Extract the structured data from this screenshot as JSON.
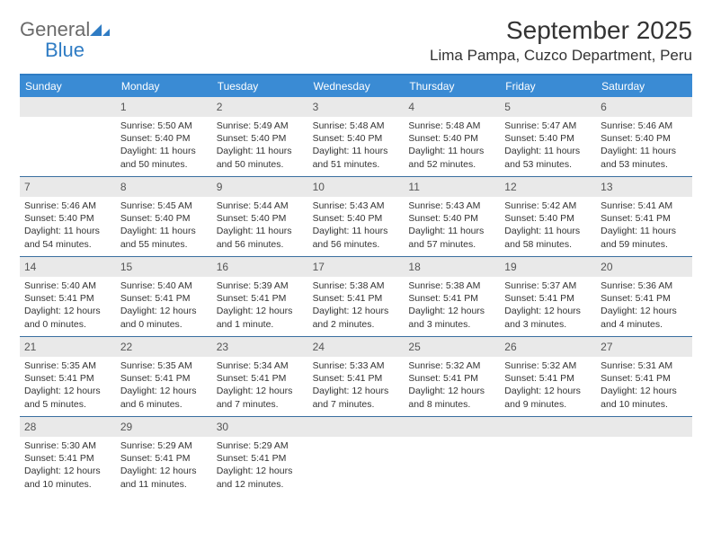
{
  "logo": {
    "word1": "General",
    "word2": "Blue"
  },
  "title": "September 2025",
  "location": "Lima Pampa, Cuzco Department, Peru",
  "colors": {
    "header_bg": "#3a8bd4",
    "header_border_top": "#2f7cc4",
    "week_divider": "#3a6fa0",
    "daynum_bg": "#e9e9e9",
    "text": "#333333",
    "logo_gray": "#6b6b6b",
    "logo_blue": "#2f7cc4"
  },
  "days_of_week": [
    "Sunday",
    "Monday",
    "Tuesday",
    "Wednesday",
    "Thursday",
    "Friday",
    "Saturday"
  ],
  "weeks": [
    [
      null,
      {
        "n": "1",
        "sunrise": "Sunrise: 5:50 AM",
        "sunset": "Sunset: 5:40 PM",
        "d1": "Daylight: 11 hours",
        "d2": "and 50 minutes."
      },
      {
        "n": "2",
        "sunrise": "Sunrise: 5:49 AM",
        "sunset": "Sunset: 5:40 PM",
        "d1": "Daylight: 11 hours",
        "d2": "and 50 minutes."
      },
      {
        "n": "3",
        "sunrise": "Sunrise: 5:48 AM",
        "sunset": "Sunset: 5:40 PM",
        "d1": "Daylight: 11 hours",
        "d2": "and 51 minutes."
      },
      {
        "n": "4",
        "sunrise": "Sunrise: 5:48 AM",
        "sunset": "Sunset: 5:40 PM",
        "d1": "Daylight: 11 hours",
        "d2": "and 52 minutes."
      },
      {
        "n": "5",
        "sunrise": "Sunrise: 5:47 AM",
        "sunset": "Sunset: 5:40 PM",
        "d1": "Daylight: 11 hours",
        "d2": "and 53 minutes."
      },
      {
        "n": "6",
        "sunrise": "Sunrise: 5:46 AM",
        "sunset": "Sunset: 5:40 PM",
        "d1": "Daylight: 11 hours",
        "d2": "and 53 minutes."
      }
    ],
    [
      {
        "n": "7",
        "sunrise": "Sunrise: 5:46 AM",
        "sunset": "Sunset: 5:40 PM",
        "d1": "Daylight: 11 hours",
        "d2": "and 54 minutes."
      },
      {
        "n": "8",
        "sunrise": "Sunrise: 5:45 AM",
        "sunset": "Sunset: 5:40 PM",
        "d1": "Daylight: 11 hours",
        "d2": "and 55 minutes."
      },
      {
        "n": "9",
        "sunrise": "Sunrise: 5:44 AM",
        "sunset": "Sunset: 5:40 PM",
        "d1": "Daylight: 11 hours",
        "d2": "and 56 minutes."
      },
      {
        "n": "10",
        "sunrise": "Sunrise: 5:43 AM",
        "sunset": "Sunset: 5:40 PM",
        "d1": "Daylight: 11 hours",
        "d2": "and 56 minutes."
      },
      {
        "n": "11",
        "sunrise": "Sunrise: 5:43 AM",
        "sunset": "Sunset: 5:40 PM",
        "d1": "Daylight: 11 hours",
        "d2": "and 57 minutes."
      },
      {
        "n": "12",
        "sunrise": "Sunrise: 5:42 AM",
        "sunset": "Sunset: 5:40 PM",
        "d1": "Daylight: 11 hours",
        "d2": "and 58 minutes."
      },
      {
        "n": "13",
        "sunrise": "Sunrise: 5:41 AM",
        "sunset": "Sunset: 5:41 PM",
        "d1": "Daylight: 11 hours",
        "d2": "and 59 minutes."
      }
    ],
    [
      {
        "n": "14",
        "sunrise": "Sunrise: 5:40 AM",
        "sunset": "Sunset: 5:41 PM",
        "d1": "Daylight: 12 hours",
        "d2": "and 0 minutes."
      },
      {
        "n": "15",
        "sunrise": "Sunrise: 5:40 AM",
        "sunset": "Sunset: 5:41 PM",
        "d1": "Daylight: 12 hours",
        "d2": "and 0 minutes."
      },
      {
        "n": "16",
        "sunrise": "Sunrise: 5:39 AM",
        "sunset": "Sunset: 5:41 PM",
        "d1": "Daylight: 12 hours",
        "d2": "and 1 minute."
      },
      {
        "n": "17",
        "sunrise": "Sunrise: 5:38 AM",
        "sunset": "Sunset: 5:41 PM",
        "d1": "Daylight: 12 hours",
        "d2": "and 2 minutes."
      },
      {
        "n": "18",
        "sunrise": "Sunrise: 5:38 AM",
        "sunset": "Sunset: 5:41 PM",
        "d1": "Daylight: 12 hours",
        "d2": "and 3 minutes."
      },
      {
        "n": "19",
        "sunrise": "Sunrise: 5:37 AM",
        "sunset": "Sunset: 5:41 PM",
        "d1": "Daylight: 12 hours",
        "d2": "and 3 minutes."
      },
      {
        "n": "20",
        "sunrise": "Sunrise: 5:36 AM",
        "sunset": "Sunset: 5:41 PM",
        "d1": "Daylight: 12 hours",
        "d2": "and 4 minutes."
      }
    ],
    [
      {
        "n": "21",
        "sunrise": "Sunrise: 5:35 AM",
        "sunset": "Sunset: 5:41 PM",
        "d1": "Daylight: 12 hours",
        "d2": "and 5 minutes."
      },
      {
        "n": "22",
        "sunrise": "Sunrise: 5:35 AM",
        "sunset": "Sunset: 5:41 PM",
        "d1": "Daylight: 12 hours",
        "d2": "and 6 minutes."
      },
      {
        "n": "23",
        "sunrise": "Sunrise: 5:34 AM",
        "sunset": "Sunset: 5:41 PM",
        "d1": "Daylight: 12 hours",
        "d2": "and 7 minutes."
      },
      {
        "n": "24",
        "sunrise": "Sunrise: 5:33 AM",
        "sunset": "Sunset: 5:41 PM",
        "d1": "Daylight: 12 hours",
        "d2": "and 7 minutes."
      },
      {
        "n": "25",
        "sunrise": "Sunrise: 5:32 AM",
        "sunset": "Sunset: 5:41 PM",
        "d1": "Daylight: 12 hours",
        "d2": "and 8 minutes."
      },
      {
        "n": "26",
        "sunrise": "Sunrise: 5:32 AM",
        "sunset": "Sunset: 5:41 PM",
        "d1": "Daylight: 12 hours",
        "d2": "and 9 minutes."
      },
      {
        "n": "27",
        "sunrise": "Sunrise: 5:31 AM",
        "sunset": "Sunset: 5:41 PM",
        "d1": "Daylight: 12 hours",
        "d2": "and 10 minutes."
      }
    ],
    [
      {
        "n": "28",
        "sunrise": "Sunrise: 5:30 AM",
        "sunset": "Sunset: 5:41 PM",
        "d1": "Daylight: 12 hours",
        "d2": "and 10 minutes."
      },
      {
        "n": "29",
        "sunrise": "Sunrise: 5:29 AM",
        "sunset": "Sunset: 5:41 PM",
        "d1": "Daylight: 12 hours",
        "d2": "and 11 minutes."
      },
      {
        "n": "30",
        "sunrise": "Sunrise: 5:29 AM",
        "sunset": "Sunset: 5:41 PM",
        "d1": "Daylight: 12 hours",
        "d2": "and 12 minutes."
      },
      null,
      null,
      null,
      null
    ]
  ]
}
